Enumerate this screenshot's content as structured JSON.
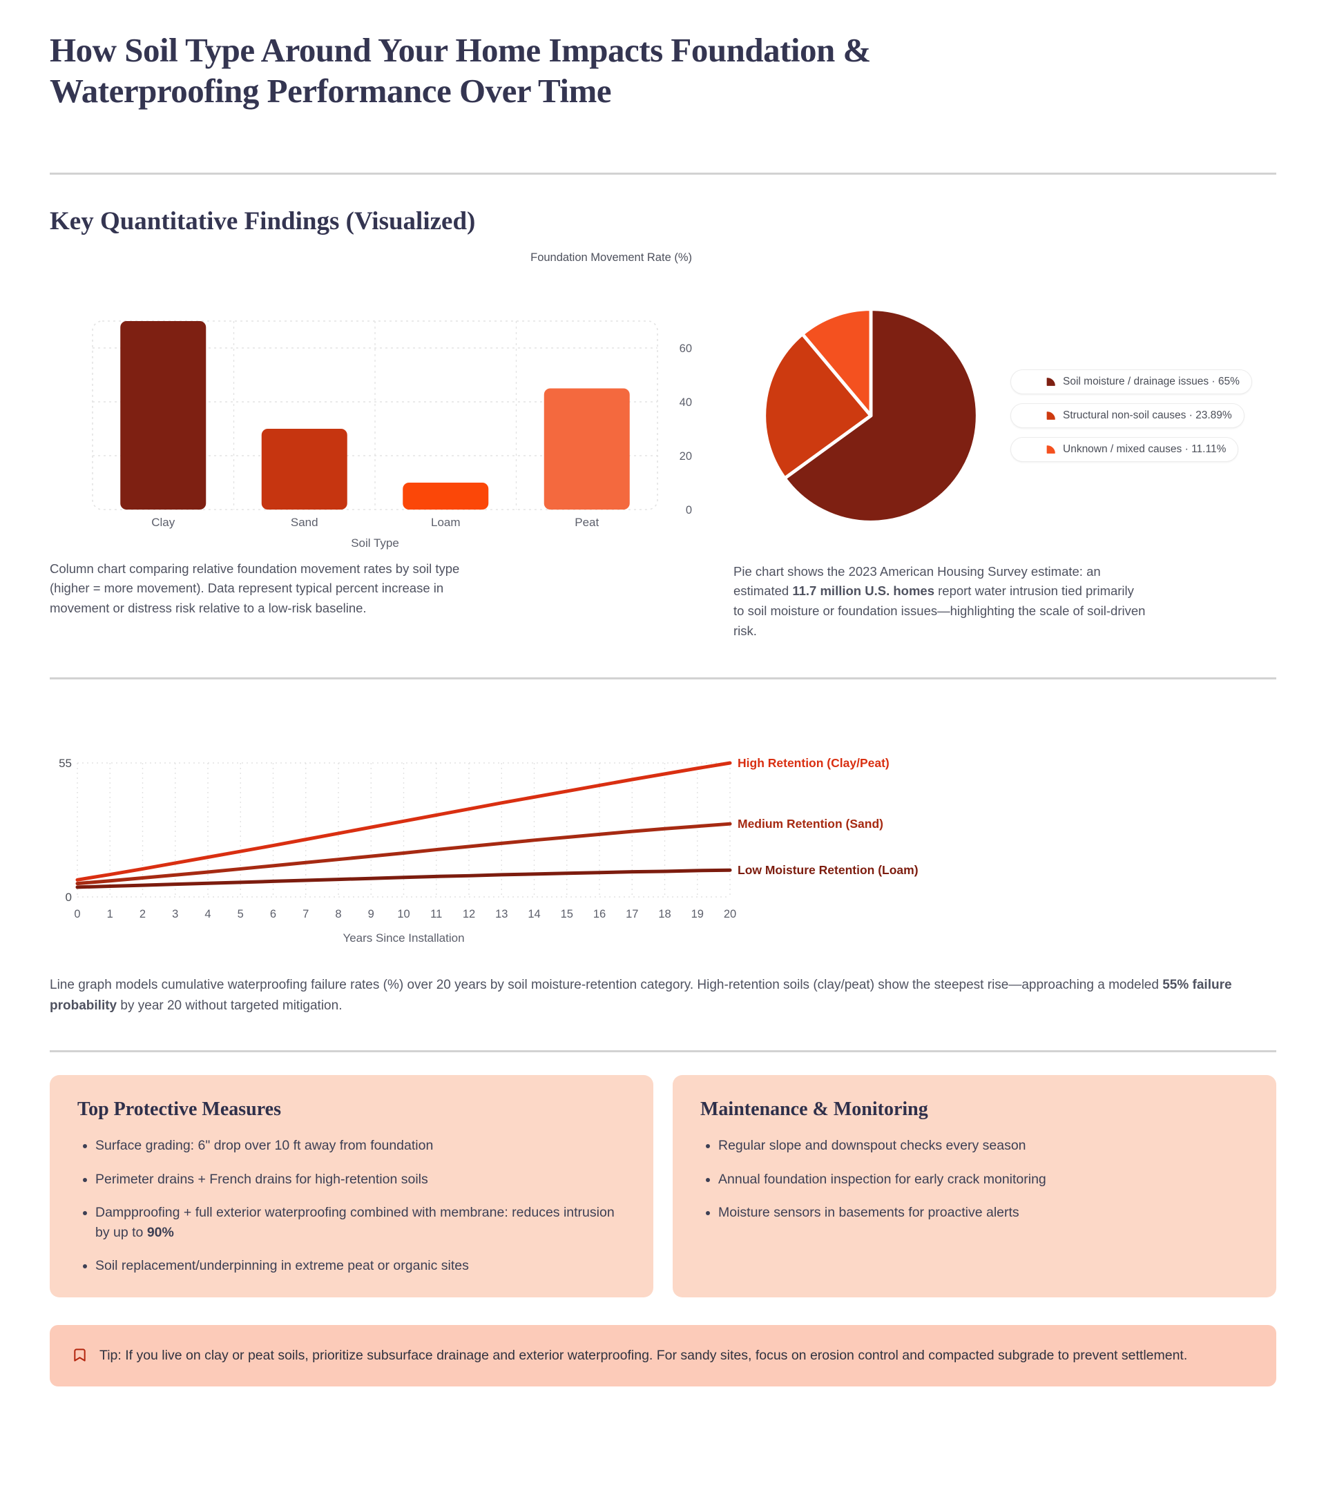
{
  "page": {
    "title": "How Soil Type Around Your Home Impacts Foundation & Waterproofing Performance Over Time",
    "section_heading": "Key Quantitative Findings (Visualized)"
  },
  "colors": {
    "heading_navy": "#343551",
    "body_gray": "#4f5260",
    "axis_gray": "#5c5f6b",
    "clay_dark_red": "#7e2012",
    "sand_red": "#c63510",
    "loam_orange_red": "#fb4708",
    "peat_orange": "#f4693e",
    "pie_structural_red": "#cd3a10",
    "pie_unknown_orange": "#f4511f",
    "line_high_red": "#d92f11",
    "line_medium_red": "#a62a12",
    "line_low_maroon": "#7c1c0e",
    "box_peach": "#fcd8c7",
    "tip_peach": "#fccbb9",
    "grid_gray": "#e3e3e3"
  },
  "chart_data": [
    {
      "type": "bar",
      "title": "Foundation Movement Rate (%)",
      "xlabel": "Soil Type",
      "categories": [
        "Clay",
        "Sand",
        "Loam",
        "Peat"
      ],
      "values": [
        70,
        30,
        10,
        45
      ],
      "bar_colors": [
        "#7e2012",
        "#c63510",
        "#fb4708",
        "#f4693e"
      ],
      "yticks": [
        60,
        40,
        20,
        0
      ],
      "ylim": [
        0,
        70
      ],
      "grid": "dashed horizontal, ticks on right"
    },
    {
      "type": "pie",
      "slices": [
        {
          "label": "Soil moisture / drainage issues",
          "value": 65,
          "display": "65%",
          "color": "#7e2012"
        },
        {
          "label": "Structural non-soil causes",
          "value": 23.89,
          "display": "23.89%",
          "color": "#cd3a10"
        },
        {
          "label": "Unknown / mixed causes",
          "value": 11.11,
          "display": "11.11%",
          "color": "#f4511f"
        }
      ],
      "legend_separator": "·",
      "legend_position": "right",
      "start_angle": "12 o'clock, clockwise"
    },
    {
      "type": "line",
      "xlabel": "Years Since Installation",
      "x": [
        0,
        1,
        2,
        3,
        4,
        5,
        6,
        7,
        8,
        9,
        10,
        11,
        12,
        13,
        14,
        15,
        16,
        17,
        18,
        19,
        20
      ],
      "yticks": [
        55,
        0
      ],
      "ylim": [
        0,
        55
      ],
      "series": [
        {
          "name": "High Retention (Clay/Peat)",
          "color": "#d92f11",
          "values": [
            7,
            9.2,
            11.5,
            13.9,
            16.3,
            18.7,
            21.1,
            23.6,
            26.1,
            28.6,
            31.1,
            33.6,
            36.1,
            38.6,
            41,
            43.4,
            45.8,
            48.2,
            50.5,
            52.8,
            55
          ]
        },
        {
          "name": "Medium Retention (Sand)",
          "color": "#a62a12",
          "values": [
            5.5,
            6.6,
            7.8,
            9,
            10.2,
            11.5,
            12.8,
            14.1,
            15.4,
            16.7,
            18,
            19.4,
            20.7,
            22,
            23.3,
            24.5,
            25.7,
            26.9,
            28,
            29,
            30
          ]
        },
        {
          "name": "Low Moisture Retention (Loam)",
          "color": "#7c1c0e",
          "values": [
            4,
            4.4,
            4.8,
            5.2,
            5.6,
            6,
            6.4,
            6.8,
            7.2,
            7.6,
            8,
            8.4,
            8.7,
            9.1,
            9.4,
            9.7,
            10,
            10.3,
            10.5,
            10.8,
            11
          ]
        }
      ],
      "grid": "dashed vertical per year, dashed top/bottom bounds",
      "legend_position": "labels at right end of each line"
    }
  ],
  "captions": {
    "bar": [
      {
        "text": "Column chart comparing relative foundation movement rates by soil type (higher = more movement). Data represent typical percent increase in movement or distress risk relative to a low-risk baseline.",
        "bold": false
      }
    ],
    "pie": [
      {
        "text": "Pie chart shows the 2023 American Housing Survey estimate: an estimated ",
        "bold": false
      },
      {
        "text": "11.7 million U.S. homes",
        "bold": true
      },
      {
        "text": " report water intrusion tied primarily to soil moisture or foundation issues—highlighting the scale of soil-driven risk.",
        "bold": false
      }
    ],
    "line": [
      {
        "text": "Line graph models cumulative waterproofing failure rates (%) over 20 years by soil moisture-retention category. High-retention soils (clay/peat) show the steepest rise—approaching a modeled ",
        "bold": false
      },
      {
        "text": "55% failure probability",
        "bold": true
      },
      {
        "text": " by year 20 without targeted mitigation.",
        "bold": false
      }
    ]
  },
  "boxes": [
    {
      "heading": "Top Protective Measures",
      "items": [
        {
          "segments": [
            {
              "text": "Surface grading: 6\" drop over 10 ft away from foundation",
              "bold": false
            }
          ]
        },
        {
          "segments": [
            {
              "text": "Perimeter drains + French drains for high-retention soils",
              "bold": false
            }
          ]
        },
        {
          "segments": [
            {
              "text": "Dampproofing + full exterior waterproofing combined with membrane: reduces intrusion by up to ",
              "bold": false
            },
            {
              "text": "90%",
              "bold": true
            }
          ]
        },
        {
          "segments": [
            {
              "text": "Soil replacement/underpinning in extreme peat or organic sites",
              "bold": false
            }
          ]
        }
      ]
    },
    {
      "heading": "Maintenance & Monitoring",
      "items": [
        {
          "segments": [
            {
              "text": "Regular slope and downspout checks every season",
              "bold": false
            }
          ]
        },
        {
          "segments": [
            {
              "text": "Annual foundation inspection for early crack monitoring",
              "bold": false
            }
          ]
        },
        {
          "segments": [
            {
              "text": "Moisture sensors in basements for proactive alerts",
              "bold": false
            }
          ]
        }
      ]
    }
  ],
  "tip": {
    "icon": "bookmark-icon",
    "segments": [
      {
        "text": "Tip: If you live on clay or peat soils, prioritize subsurface drainage and exterior waterproofing. For sandy sites, focus on erosion control and compacted subgrade to prevent settlement.",
        "bold": false
      }
    ]
  }
}
